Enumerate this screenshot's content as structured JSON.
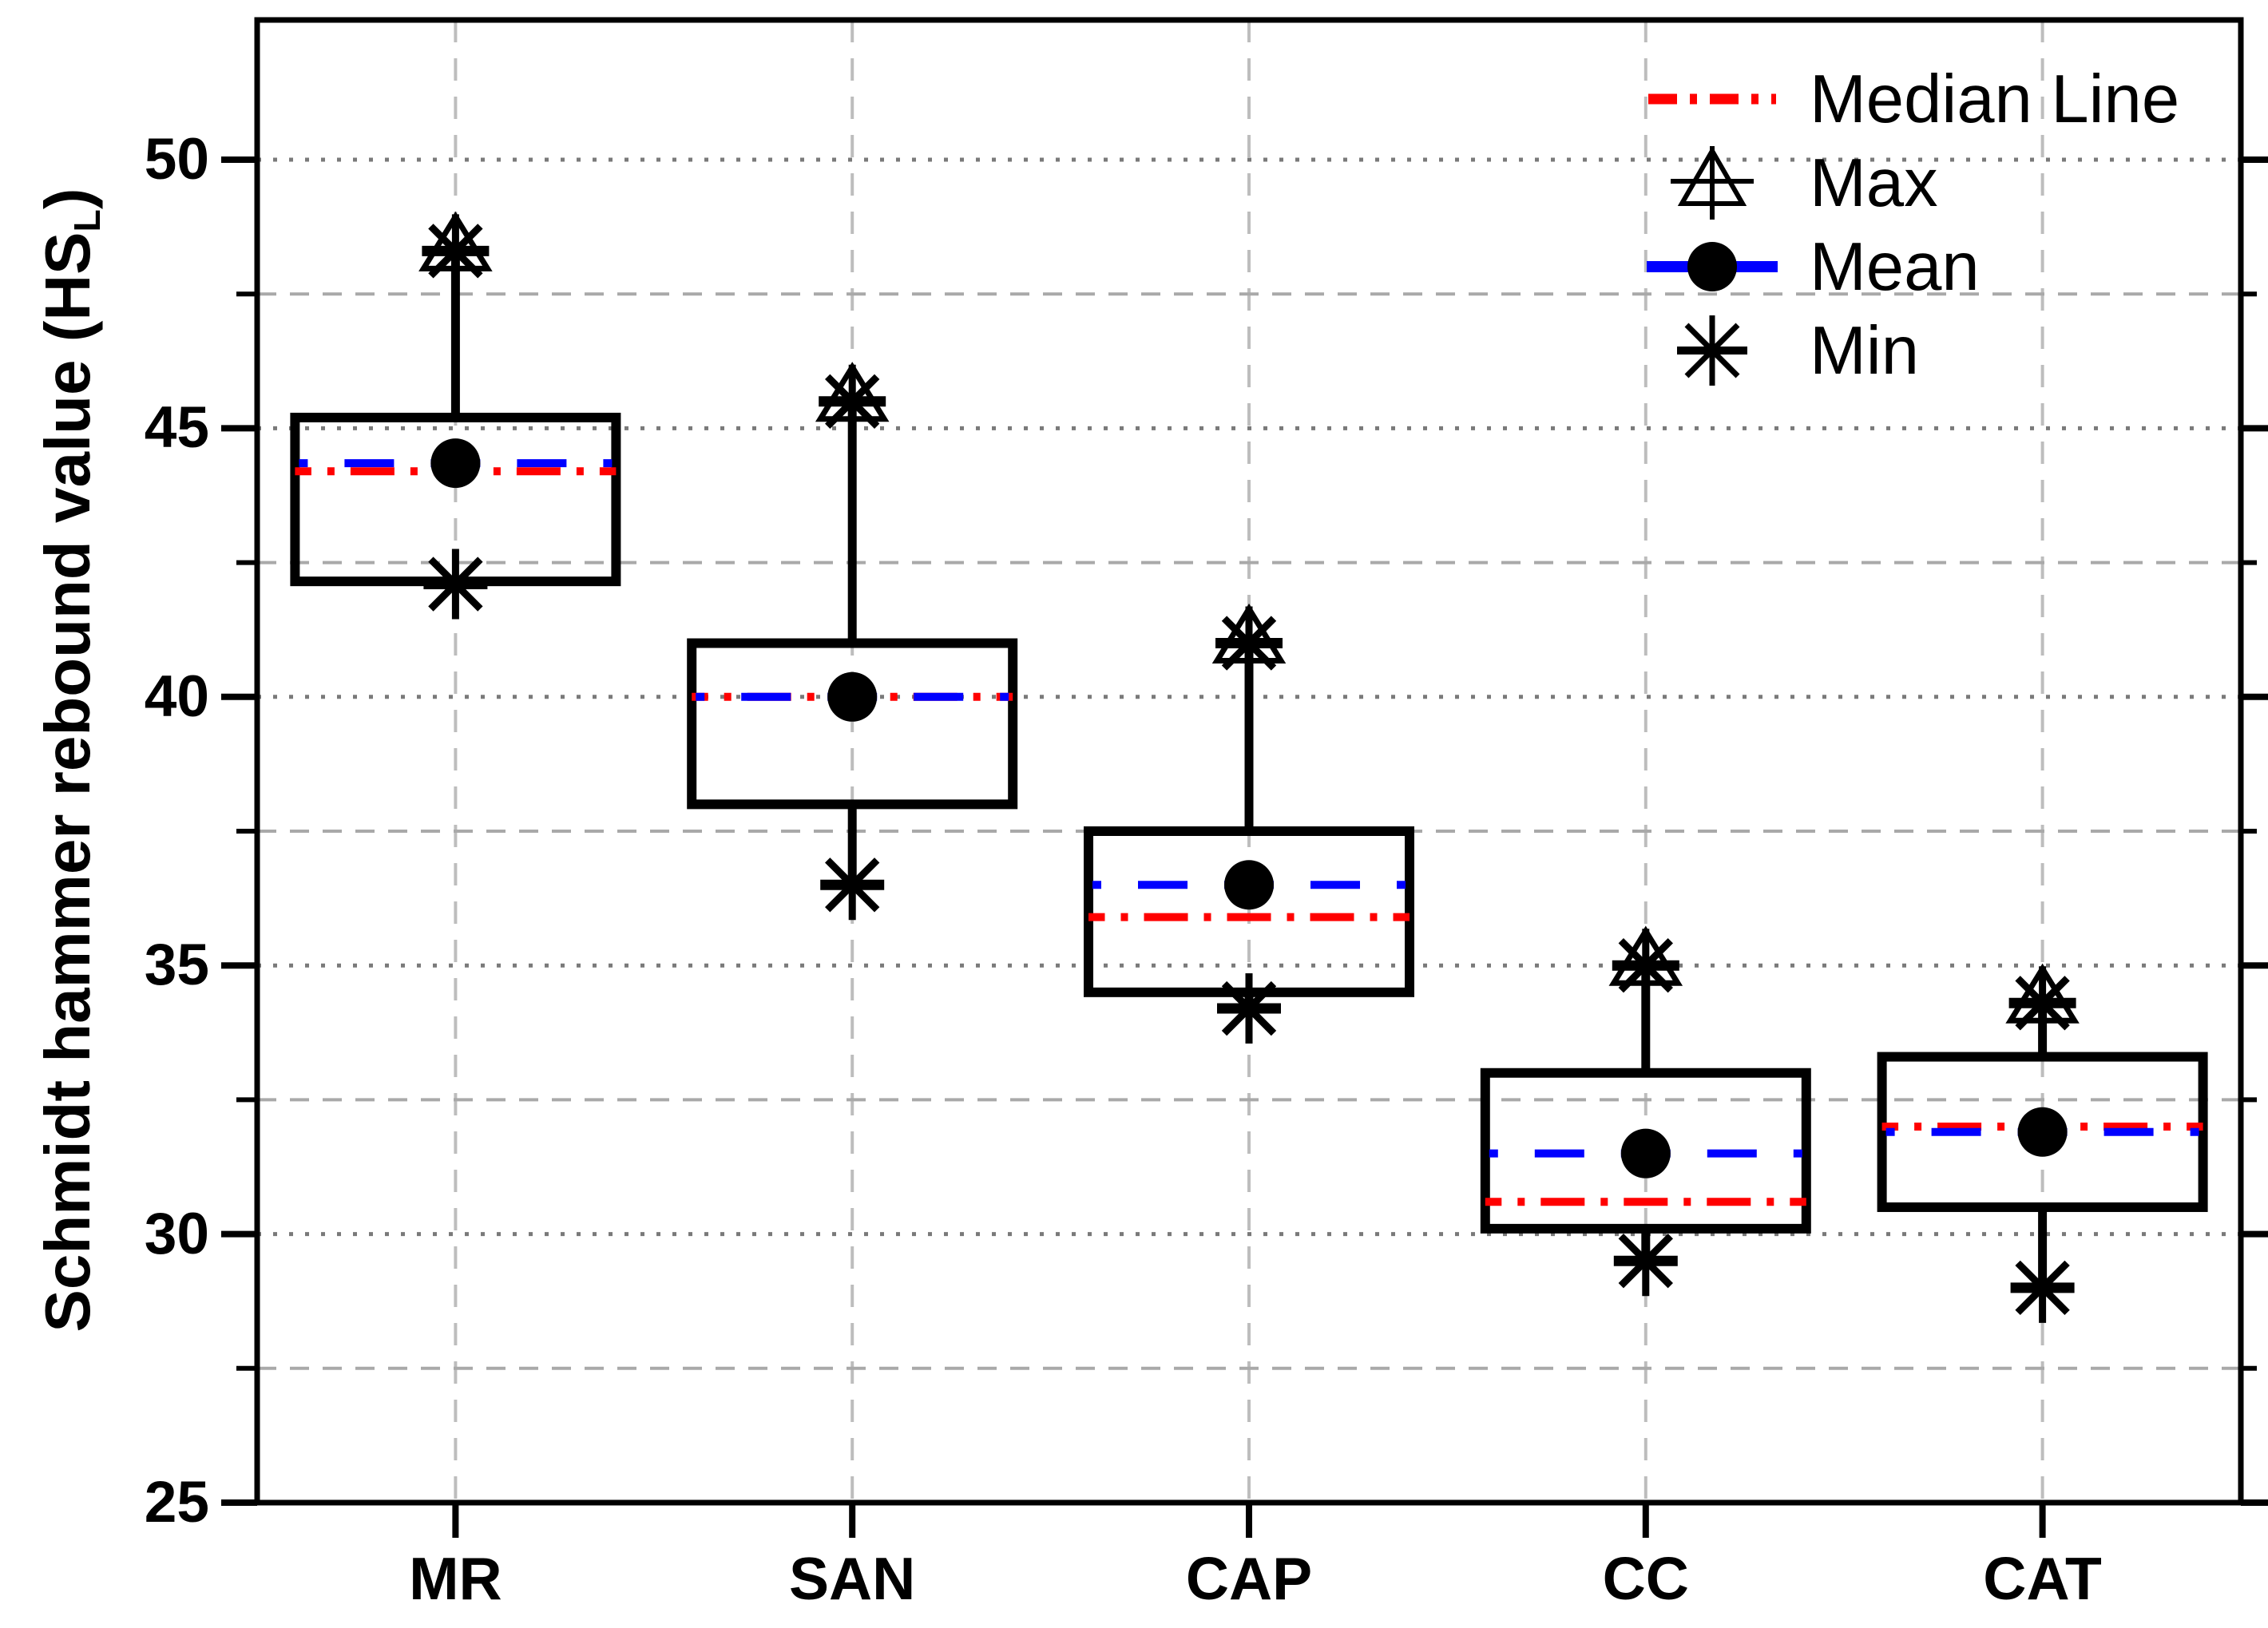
{
  "figure": {
    "y_axis": {
      "title_prefix": "Schmidt hammer rebound value (HS",
      "title_sub": "L",
      "title_suffix": ")",
      "tick_labels": [
        "25",
        "30",
        "35",
        "40",
        "45",
        "50"
      ]
    },
    "x_axis": {
      "category_labels": [
        "MR",
        "SAN",
        "CAP",
        "CC",
        "CAT"
      ]
    },
    "legend": {
      "items": [
        {
          "id": "median",
          "label": "Median Line"
        },
        {
          "id": "max",
          "label": "Max"
        },
        {
          "id": "mean",
          "label": "Mean"
        },
        {
          "id": "min",
          "label": "Min"
        }
      ]
    },
    "colors": {
      "median_line": "#ff0000",
      "mean_line": "#0000ff",
      "box_and_whisker": "#000000",
      "marker": "#000000",
      "grid_major": "#7a7a7a",
      "grid_minor": "#a9a9a9",
      "grid_vertical": "#bdbdbd"
    }
  },
  "chart_data": {
    "type": "box",
    "title": "",
    "xlabel": "",
    "ylabel": "Schmidt hammer rebound value (HSL)",
    "ylim": [
      25,
      52.5
    ],
    "y_major_ticks": [
      25,
      30,
      35,
      40,
      45,
      50
    ],
    "y_minor_ticks": [
      27.5,
      32.5,
      37.5,
      42.5,
      47.5
    ],
    "grid": "horizontal major dotted, horizontal minor dashed, vertical dashed at category centers",
    "legend_position": "top-right inside plot",
    "categories": [
      "MR",
      "SAN",
      "CAP",
      "CC",
      "CAT"
    ],
    "series": [
      {
        "name": "MR",
        "min": 42.1,
        "q1": 42.15,
        "median": 44.2,
        "mean": 44.35,
        "q3": 45.2,
        "max": 48.3
      },
      {
        "name": "SAN",
        "min": 36.5,
        "q1": 38.0,
        "median": 40.0,
        "mean": 40.0,
        "q3": 41.0,
        "max": 45.5
      },
      {
        "name": "CAP",
        "min": 34.2,
        "q1": 34.5,
        "median": 35.9,
        "mean": 36.5,
        "q3": 37.5,
        "max": 41.0
      },
      {
        "name": "CC",
        "min": 29.5,
        "q1": 30.1,
        "median": 30.6,
        "mean": 31.5,
        "q3": 33.0,
        "max": 35.0
      },
      {
        "name": "CAT",
        "min": 29.0,
        "q1": 30.5,
        "median": 32.0,
        "mean": 31.9,
        "q3": 33.3,
        "max": 34.3
      }
    ]
  }
}
